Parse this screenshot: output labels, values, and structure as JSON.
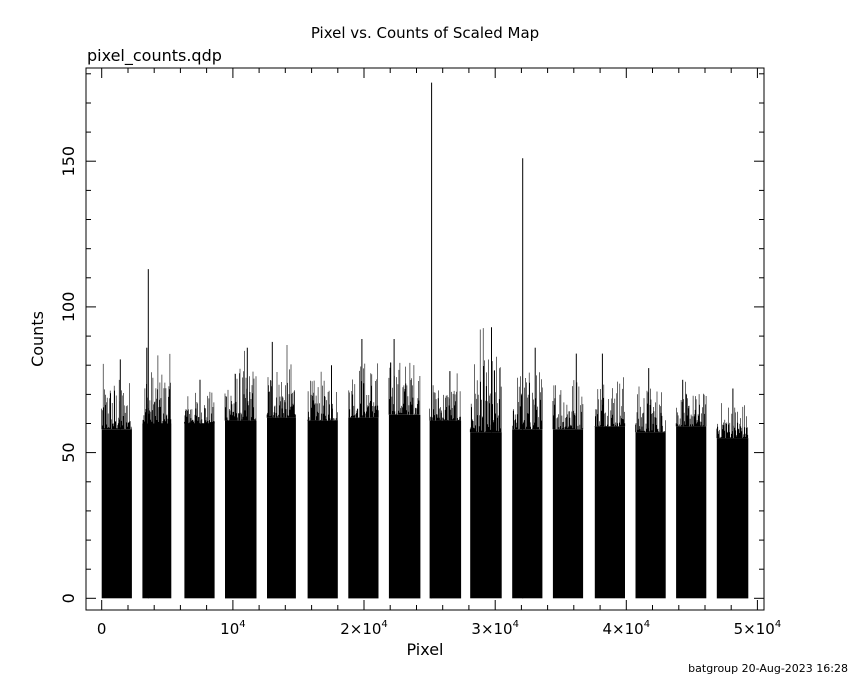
{
  "chart_data": {
    "type": "bar",
    "title": "Pixel vs. Counts of Scaled Map",
    "subtitle": "pixel_counts.qdp",
    "xlabel": "Pixel",
    "ylabel": "Counts",
    "xlim": [
      -1200,
      50500
    ],
    "ylim": [
      -4,
      182
    ],
    "xticks": [
      {
        "value": 0,
        "label": "0"
      },
      {
        "value": 10000,
        "label": "10",
        "exp": "4"
      },
      {
        "value": 20000,
        "label": "2×10",
        "exp": "4"
      },
      {
        "value": 30000,
        "label": "3×10",
        "exp": "4"
      },
      {
        "value": 40000,
        "label": "4×10",
        "exp": "4"
      },
      {
        "value": 50000,
        "label": "5×10",
        "exp": "4"
      }
    ],
    "yticks": [
      {
        "value": 0,
        "label": "0"
      },
      {
        "value": 50,
        "label": "50"
      },
      {
        "value": 100,
        "label": "100"
      },
      {
        "value": 150,
        "label": "150"
      }
    ],
    "series": [
      {
        "segments": [
          {
            "x_start": 0,
            "x_end": 2300,
            "base": 58,
            "max": 82
          },
          {
            "x_start": 3100,
            "x_end": 5300,
            "base": 60,
            "max": 86
          },
          {
            "x_start": 6300,
            "x_end": 8600,
            "base": 60,
            "max": 75
          },
          {
            "x_start": 9400,
            "x_end": 11800,
            "base": 61,
            "max": 86
          },
          {
            "x_start": 12600,
            "x_end": 14800,
            "base": 62,
            "max": 88
          },
          {
            "x_start": 15700,
            "x_end": 18000,
            "base": 61,
            "max": 80
          },
          {
            "x_start": 18800,
            "x_end": 21100,
            "base": 62,
            "max": 89
          },
          {
            "x_start": 21900,
            "x_end": 24300,
            "base": 63,
            "max": 89
          },
          {
            "x_start": 25000,
            "x_end": 27400,
            "base": 61,
            "max": 78
          },
          {
            "x_start": 28100,
            "x_end": 30500,
            "base": 57,
            "max": 93
          },
          {
            "x_start": 31300,
            "x_end": 33600,
            "base": 58,
            "max": 86
          },
          {
            "x_start": 34400,
            "x_end": 36700,
            "base": 58,
            "max": 84
          },
          {
            "x_start": 37600,
            "x_end": 39900,
            "base": 59,
            "max": 84
          },
          {
            "x_start": 40700,
            "x_end": 43000,
            "base": 57,
            "max": 79
          },
          {
            "x_start": 43800,
            "x_end": 46100,
            "base": 59,
            "max": 75
          },
          {
            "x_start": 46900,
            "x_end": 49300,
            "base": 55,
            "max": 72
          }
        ],
        "peaks": [
          {
            "x": 3550,
            "y": 113
          },
          {
            "x": 25150,
            "y": 177
          },
          {
            "x": 32100,
            "y": 151
          }
        ]
      }
    ],
    "grid": false,
    "legend": false
  },
  "footer": "batgroup 20-Aug-2023 16:28"
}
